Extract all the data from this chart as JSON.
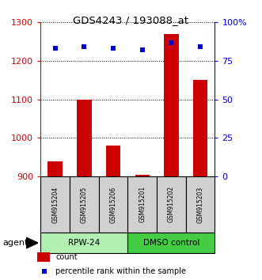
{
  "title": "GDS4243 / 193088_at",
  "samples": [
    "GSM915204",
    "GSM915205",
    "GSM915206",
    "GSM915201",
    "GSM915202",
    "GSM915203"
  ],
  "counts": [
    940,
    1100,
    980,
    905,
    1270,
    1150
  ],
  "percentiles": [
    83,
    84,
    83,
    82,
    87,
    84
  ],
  "groups": [
    {
      "label": "RPW-24",
      "indices": [
        0,
        1,
        2
      ],
      "color": "#b2f0b2"
    },
    {
      "label": "DMSO control",
      "indices": [
        3,
        4,
        5
      ],
      "color": "#44cc44"
    }
  ],
  "ylim_left": [
    900,
    1300
  ],
  "ylim_right": [
    0,
    100
  ],
  "yticks_left": [
    900,
    1000,
    1100,
    1200,
    1300
  ],
  "yticks_right": [
    0,
    25,
    50,
    75,
    100
  ],
  "ytick_labels_right": [
    "0",
    "25",
    "50",
    "75",
    "100%"
  ],
  "bar_color": "#cc0000",
  "dot_color": "#0000cc",
  "left_axis_color": "#cc0000",
  "right_axis_color": "#0000cc",
  "bar_width": 0.5,
  "agent_label": "agent",
  "legend_count_label": "count",
  "legend_percentile_label": "percentile rank within the sample",
  "sample_box_color": "#d0d0d0",
  "sample_box_edge": "#000000"
}
